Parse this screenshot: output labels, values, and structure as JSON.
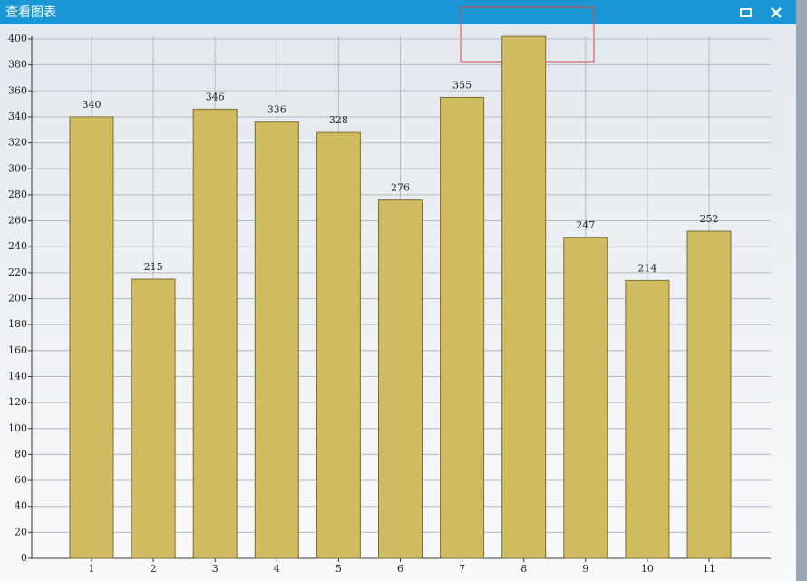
{
  "window": {
    "title": "查看图表"
  },
  "chart_data": {
    "type": "bar",
    "categories": [
      "1",
      "2",
      "3",
      "4",
      "5",
      "6",
      "7",
      "8",
      "9",
      "10",
      "11"
    ],
    "values": [
      340,
      215,
      346,
      336,
      328,
      276,
      355,
      402,
      247,
      214,
      252
    ],
    "value_labels": [
      "340",
      "215",
      "346",
      "336",
      "328",
      "276",
      "355",
      null,
      "247",
      "214",
      "252"
    ],
    "color": "#cfbb60",
    "ylim": [
      0,
      400
    ],
    "yticks": [
      0,
      20,
      40,
      60,
      80,
      100,
      120,
      140,
      160,
      180,
      200,
      220,
      240,
      260,
      280,
      300,
      320,
      340,
      360,
      380,
      400
    ],
    "grid": true
  }
}
